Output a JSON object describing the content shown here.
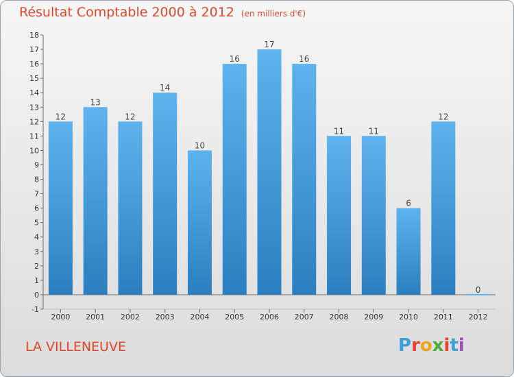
{
  "header": {
    "title": "Résultat Comptable 2000 à 2012",
    "subtitle": "(en milliers d'€)"
  },
  "footer": {
    "commune": "LA VILLENEUVE",
    "logo_letters": [
      "P",
      "r",
      "o",
      "x",
      "i",
      "t",
      "i"
    ],
    "logo_colors": [
      "#3aa0d8",
      "#e8412c",
      "#f0a21a",
      "#4bae3a",
      "#e8412c",
      "#3aa0d8",
      "#9b4fb0"
    ]
  },
  "colors": {
    "bar_top": "#5eb3ee",
    "bar_bottom": "#2b7fc0"
  },
  "chart_data": {
    "type": "bar",
    "title": "Résultat Comptable 2000 à 2012",
    "ylabel": "en milliers d'€",
    "xlabel": "",
    "categories": [
      "2000",
      "2001",
      "2002",
      "2003",
      "2004",
      "2005",
      "2006",
      "2007",
      "2008",
      "2009",
      "2010",
      "2011",
      "2012"
    ],
    "values": [
      12,
      13,
      12,
      14,
      10,
      16,
      17,
      16,
      11,
      11,
      6,
      12,
      0
    ],
    "value_labels": [
      "12",
      "13",
      "12",
      "14",
      "10",
      "16",
      "17",
      "16",
      "11",
      "11",
      "6",
      "12",
      "0"
    ],
    "ylim": [
      -1,
      18
    ],
    "yticks": [
      "-1",
      "0",
      "1",
      "2",
      "3",
      "4",
      "5",
      "6",
      "7",
      "8",
      "9",
      "10",
      "11",
      "12",
      "13",
      "14",
      "15",
      "16",
      "17",
      "18"
    ],
    "grid": false
  }
}
